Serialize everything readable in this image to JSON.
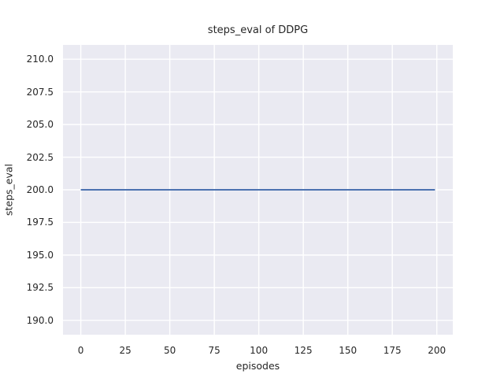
{
  "chart_data": {
    "type": "line",
    "title": "steps_eval of DDPG",
    "xlabel": "episodes",
    "ylabel": "steps_eval",
    "xlim": [
      -10,
      209
    ],
    "ylim": [
      188.9,
      211.1
    ],
    "grid": true,
    "legend": false,
    "xticks": {
      "values": [
        0,
        25,
        50,
        75,
        100,
        125,
        150,
        175,
        200
      ],
      "labels": [
        "0",
        "25",
        "50",
        "75",
        "100",
        "125",
        "150",
        "175",
        "200"
      ]
    },
    "yticks": {
      "values": [
        190.0,
        192.5,
        195.0,
        197.5,
        200.0,
        202.5,
        205.0,
        207.5,
        210.0
      ],
      "labels": [
        "190.0",
        "192.5",
        "195.0",
        "197.5",
        "200.0",
        "202.5",
        "205.0",
        "207.5",
        "210.0"
      ]
    },
    "series": [
      {
        "name": "steps_eval of DDPG",
        "x": [
          0,
          199
        ],
        "y": [
          200,
          200
        ],
        "color": "#4c72b0",
        "line_width": 2
      }
    ],
    "style": {
      "figure_bg": "#ffffff",
      "plot_bg": "#eaeaf2",
      "grid_color": "#ffffff",
      "text_color": "#262626"
    }
  }
}
